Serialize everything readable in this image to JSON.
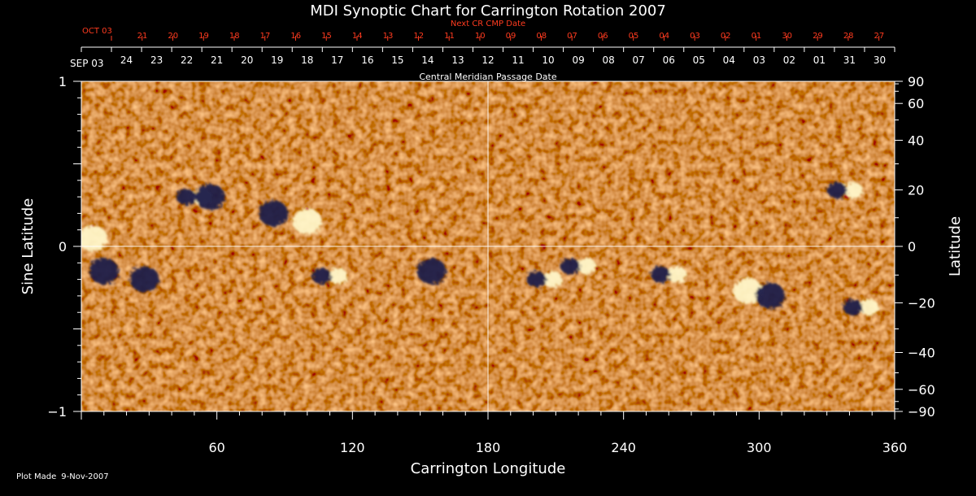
{
  "chart_data": {
    "type": "heatmap",
    "title": "MDI Synoptic Chart for Carrington Rotation 2007",
    "xlabel": "Carrington Longitude",
    "ylabel": "Sine Latitude",
    "ylabel_right": "Latitude",
    "xlim": [
      0,
      360
    ],
    "ylim": [
      -1,
      1
    ],
    "x_ticks": [
      60,
      120,
      180,
      240,
      300,
      360
    ],
    "y_ticks": [
      {
        "value": -1,
        "label": "−1"
      },
      {
        "value": 0,
        "label": "0"
      },
      {
        "value": 1,
        "label": "1"
      }
    ],
    "right_ticks": [
      90,
      60,
      40,
      20,
      0,
      -20,
      -40,
      -60,
      -90
    ],
    "right_tick_labels": [
      "90",
      "60",
      "40",
      "20",
      "0",
      "−20",
      "−40",
      "−60",
      "−90"
    ],
    "cmp_axis_label": "Central Meridian Passage Date",
    "cmp_start": "SEP 03",
    "cmp_dates": [
      "24",
      "23",
      "22",
      "21",
      "20",
      "19",
      "18",
      "17",
      "16",
      "15",
      "14",
      "13",
      "12",
      "11",
      "10",
      "09",
      "08",
      "07",
      "06",
      "05",
      "04",
      "03",
      "02",
      "01",
      "31",
      "30"
    ],
    "next_cr_label": "Next CR CMP Date",
    "next_cr_start": "OCT 03",
    "next_cr_dates": [
      "21",
      "20",
      "19",
      "18",
      "17",
      "16",
      "15",
      "14",
      "13",
      "12",
      "11",
      "10",
      "09",
      "08",
      "07",
      "06",
      "05",
      "04",
      "03",
      "02",
      "01",
      "30",
      "29",
      "28",
      "27"
    ],
    "plot_made_label": "Plot Made",
    "plot_made_date": "9-Nov-2007",
    "colors": {
      "background_field": "#f04a14",
      "positive_polarity": "#fff6c8",
      "negative_polarity": "#1a1a4a",
      "annotation_red": "#ff3b1f"
    },
    "active_regions": [
      {
        "lon": 50,
        "sinlat": 0.3,
        "polarity": "mixed"
      },
      {
        "lon": 57,
        "sinlat": 0.3,
        "polarity": "negative"
      },
      {
        "lon": 85,
        "sinlat": 0.2,
        "polarity": "negative"
      },
      {
        "lon": 100,
        "sinlat": 0.15,
        "polarity": "positive"
      },
      {
        "lon": 110,
        "sinlat": -0.18,
        "polarity": "mixed"
      },
      {
        "lon": 155,
        "sinlat": -0.15,
        "polarity": "negative"
      },
      {
        "lon": 205,
        "sinlat": -0.2,
        "polarity": "mixed"
      },
      {
        "lon": 220,
        "sinlat": -0.12,
        "polarity": "mixed"
      },
      {
        "lon": 260,
        "sinlat": -0.17,
        "polarity": "mixed"
      },
      {
        "lon": 295,
        "sinlat": -0.27,
        "polarity": "positive"
      },
      {
        "lon": 305,
        "sinlat": -0.3,
        "polarity": "negative"
      },
      {
        "lon": 338,
        "sinlat": 0.34,
        "polarity": "mixed"
      },
      {
        "lon": 345,
        "sinlat": -0.37,
        "polarity": "mixed"
      },
      {
        "lon": 5,
        "sinlat": 0.05,
        "polarity": "positive"
      },
      {
        "lon": 10,
        "sinlat": -0.15,
        "polarity": "negative"
      },
      {
        "lon": 28,
        "sinlat": -0.2,
        "polarity": "negative"
      }
    ]
  }
}
